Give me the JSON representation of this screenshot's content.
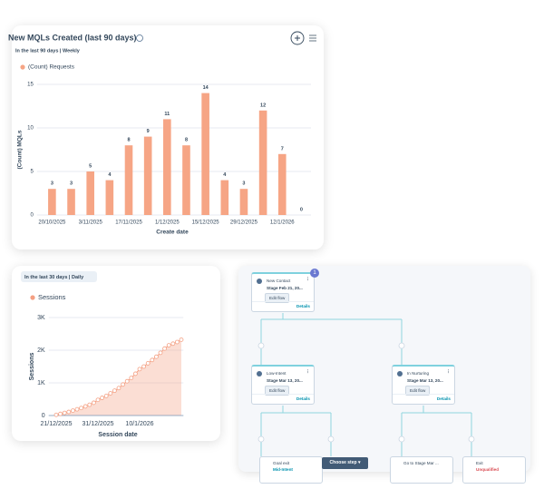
{
  "chart_data": [
    {
      "type": "bar",
      "title": "New MQLs Created (last 90 days)",
      "subtitle": "In the last 90 days | Weekly",
      "categories": [
        "20/10/2025",
        null,
        "3/11/2025",
        null,
        "17/11/2025",
        null,
        "1/12/2025",
        null,
        "15/12/2025",
        null,
        "29/12/2025",
        null,
        "12/1/2026",
        null
      ],
      "series": [
        {
          "name": "(Count) Requests",
          "color": "#f6a585",
          "values": [
            3,
            3,
            5,
            4,
            8,
            9,
            11,
            8,
            14,
            4,
            3,
            12,
            7,
            0
          ]
        }
      ],
      "x_label": "Create date",
      "y_label": "(Count) MQLs",
      "ylim": [
        0,
        15
      ],
      "yticks": [
        0,
        5,
        10,
        15
      ],
      "grid": true
    },
    {
      "type": "area",
      "subtitle": "In the last 30 days | Daily",
      "categories": [
        "21/12/2025",
        null,
        null,
        null,
        null,
        null,
        null,
        null,
        null,
        null,
        "31/12/2025",
        null,
        null,
        null,
        null,
        null,
        null,
        null,
        null,
        null,
        "10/1/2026",
        null,
        null,
        null,
        null,
        null,
        null,
        null,
        null,
        null,
        null
      ],
      "series": [
        {
          "name": "Sessions",
          "color": "#f4a083",
          "values": [
            20,
            50,
            80,
            110,
            150,
            190,
            230,
            280,
            330,
            390,
            480,
            540,
            600,
            680,
            760,
            840,
            950,
            1050,
            1150,
            1280,
            1420,
            1500,
            1600,
            1700,
            1800,
            1920,
            2050,
            2150,
            2200,
            2250,
            2320
          ]
        }
      ],
      "x_label": "Session date",
      "y_label": "Sessions",
      "ylim": [
        0,
        3000
      ],
      "yticks": [
        0,
        {
          "value": 1000,
          "label": "1K"
        },
        {
          "value": 2000,
          "label": "2K"
        },
        {
          "value": 3000,
          "label": "3K"
        }
      ],
      "grid": true
    }
  ],
  "workflow": {
    "badge": "1",
    "nodes": [
      {
        "title": "New Contact",
        "stage": "Stage Feb 21, 20...",
        "button": "Edit flow",
        "link": "Details"
      },
      {
        "title": "Low-Intent",
        "stage": "Stage Mar 13, 20...",
        "button": "Edit flow",
        "link": "Details"
      },
      {
        "title": "In Nurturing",
        "stage": "Stage Mar 13, 20...",
        "button": "Edit flow",
        "link": "Details"
      }
    ],
    "bottom_nodes": [
      {
        "title": "Goal exit",
        "subtitle": "Mid-Intent"
      },
      {
        "title": "Go to Stage Mar ..."
      },
      {
        "title": "Exit",
        "subtitle": "Unqualified"
      }
    ],
    "choose_step": "Choose step ▾"
  }
}
